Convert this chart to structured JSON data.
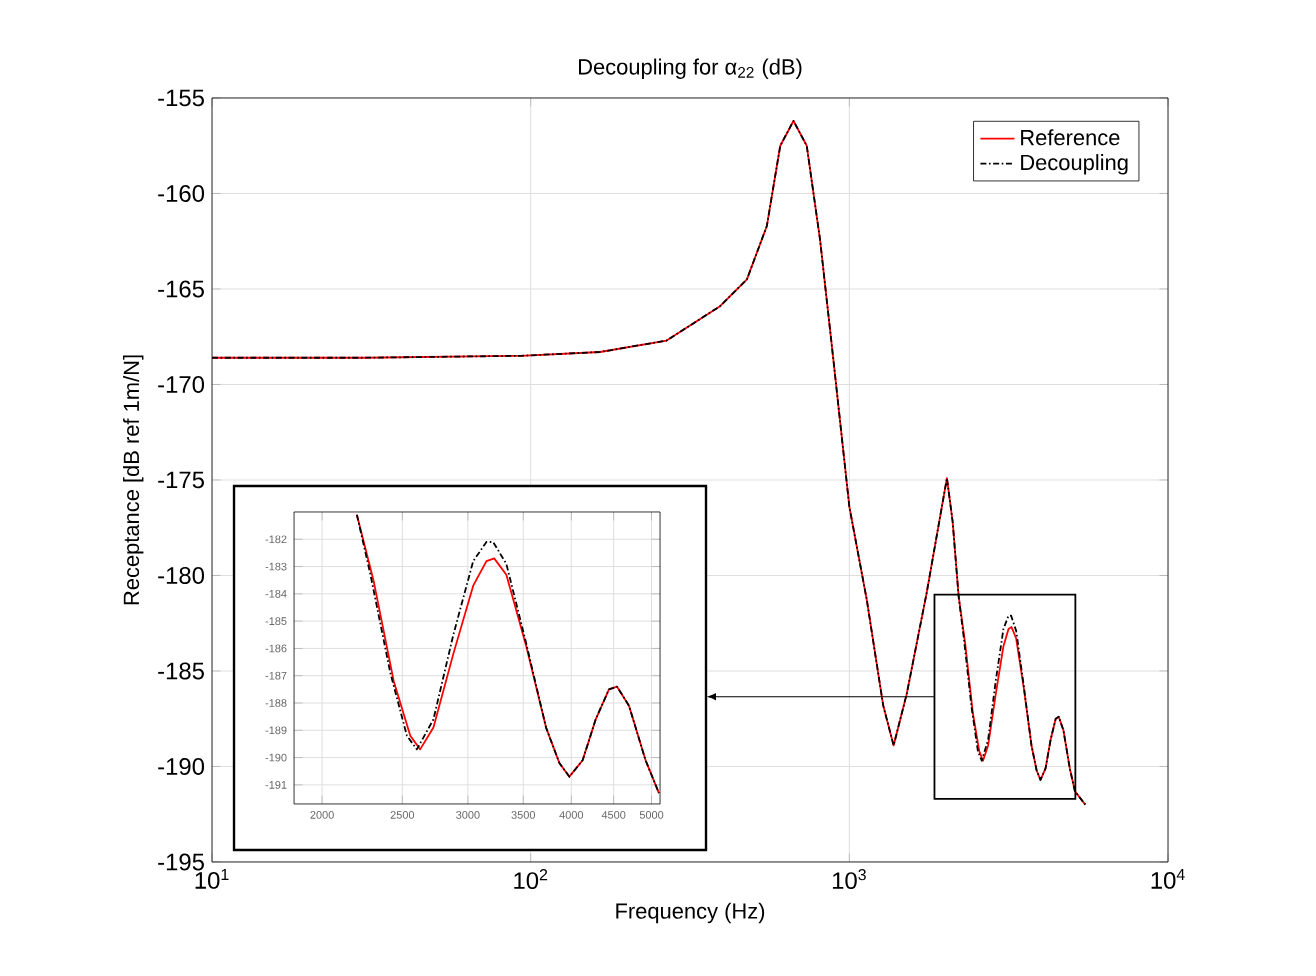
{
  "chart_data": [
    {
      "type": "line",
      "title": "Decoupling for α$_{22}$ (dB)",
      "xlabel": "Frequency (Hz)",
      "ylabel": "Receptance [dB ref 1m/N]",
      "log": "x",
      "xlim": [
        10,
        10000
      ],
      "xticks": [
        {
          "value": 10,
          "label": "10$^{1}$"
        },
        {
          "value": 100,
          "label": "10$^{2}$"
        },
        {
          "value": 1000,
          "label": "10$^{3}$"
        },
        {
          "value": 10000,
          "label": "10$^{4}$"
        }
      ],
      "ylim": [
        -195,
        -155
      ],
      "yticks": [
        -195,
        -190,
        -185,
        -180,
        -175,
        -170,
        -165,
        -160,
        -155
      ],
      "grid": true,
      "legend": "top right",
      "series": [
        {
          "name": "Reference",
          "color": "#ff0000",
          "line_style": "solid",
          "x": [
            10,
            30,
            93,
            165,
            267,
            393,
            477,
            551,
            607,
            668,
            735,
            809,
            891,
            1000,
            1135,
            1277,
            1377,
            1514,
            1749,
            2024,
            2110,
            2203,
            2307,
            2441,
            2556,
            2627,
            2726,
            2881,
            3045,
            3159,
            3228,
            3339,
            3528,
            3729,
            3870,
            3979,
            4128,
            4281,
            4442,
            4542,
            4696,
            4918,
            5104,
            5500
          ],
          "values": [
            -168.6,
            -168.6,
            -168.5,
            -168.3,
            -167.7,
            -165.9,
            -164.5,
            -161.7,
            -157.5,
            -156.2,
            -157.5,
            -162.4,
            -168.7,
            -176.4,
            -181.3,
            -186.8,
            -188.9,
            -186.2,
            -180.9,
            -174.9,
            -177.2,
            -181.1,
            -183.5,
            -187.2,
            -189.2,
            -189.7,
            -188.9,
            -186.2,
            -183.7,
            -182.8,
            -182.7,
            -183.3,
            -185.9,
            -188.9,
            -190.2,
            -190.7,
            -190.1,
            -188.6,
            -187.5,
            -187.4,
            -188.1,
            -190.1,
            -191.3,
            -192.0
          ]
        },
        {
          "name": "Decoupling",
          "color": "#000000",
          "line_style": "dashed",
          "x": [
            10,
            30,
            93,
            165,
            267,
            393,
            477,
            551,
            607,
            668,
            735,
            809,
            891,
            1000,
            1135,
            1277,
            1377,
            1514,
            1749,
            2024,
            2110,
            2203,
            2288,
            2418,
            2532,
            2603,
            2726,
            2881,
            3045,
            3159,
            3218,
            3339,
            3528,
            3729,
            3870,
            3979,
            4128,
            4281,
            4442,
            4542,
            4696,
            4918,
            5104,
            5500
          ],
          "values": [
            -168.6,
            -168.6,
            -168.5,
            -168.3,
            -167.7,
            -165.9,
            -164.5,
            -161.7,
            -157.5,
            -156.2,
            -157.5,
            -162.4,
            -168.7,
            -176.4,
            -181.3,
            -186.8,
            -188.9,
            -186.2,
            -180.9,
            -174.9,
            -177.2,
            -181.1,
            -183.3,
            -186.9,
            -189.2,
            -189.7,
            -188.6,
            -185.5,
            -182.8,
            -182.1,
            -182.1,
            -182.9,
            -185.8,
            -188.9,
            -190.2,
            -190.7,
            -190.1,
            -188.6,
            -187.5,
            -187.4,
            -188.1,
            -190.1,
            -191.3,
            -192.0
          ]
        }
      ]
    },
    {
      "type": "line",
      "log": "x",
      "xlim": [
        1850,
        5120
      ],
      "xticks": [
        2000,
        2500,
        3000,
        3500,
        4000,
        4500,
        5000
      ],
      "ylim": [
        -191.7,
        -181
      ],
      "yticks": [
        -191,
        -190,
        -189,
        -188,
        -187,
        -186,
        -185,
        -184,
        -183,
        -182
      ],
      "grid": true,
      "series": [
        {
          "color": "#ff0000",
          "line_style": "solid",
          "x": [
            2203,
            2307,
            2441,
            2556,
            2627,
            2726,
            2881,
            3045,
            3159,
            3228,
            3339,
            3528,
            3729,
            3870,
            3979,
            4128,
            4281,
            4442,
            4542,
            4696,
            4918,
            5104
          ],
          "values": [
            -181.1,
            -183.5,
            -187.2,
            -189.2,
            -189.7,
            -188.9,
            -186.2,
            -183.7,
            -182.8,
            -182.7,
            -183.3,
            -185.9,
            -188.9,
            -190.2,
            -190.7,
            -190.1,
            -188.6,
            -187.5,
            -187.4,
            -188.1,
            -190.1,
            -191.3
          ]
        },
        {
          "color": "#000000",
          "line_style": "dashed",
          "x": [
            2203,
            2288,
            2418,
            2532,
            2603,
            2726,
            2881,
            3045,
            3159,
            3218,
            3339,
            3528,
            3729,
            3870,
            3979,
            4128,
            4281,
            4442,
            4542,
            4696,
            4918,
            5104
          ],
          "values": [
            -181.1,
            -183.3,
            -186.9,
            -189.2,
            -189.7,
            -188.6,
            -185.5,
            -182.8,
            -182.1,
            -182.1,
            -182.9,
            -185.8,
            -188.9,
            -190.2,
            -190.7,
            -190.1,
            -188.6,
            -187.5,
            -187.4,
            -188.1,
            -190.1,
            -191.3
          ]
        }
      ]
    }
  ]
}
